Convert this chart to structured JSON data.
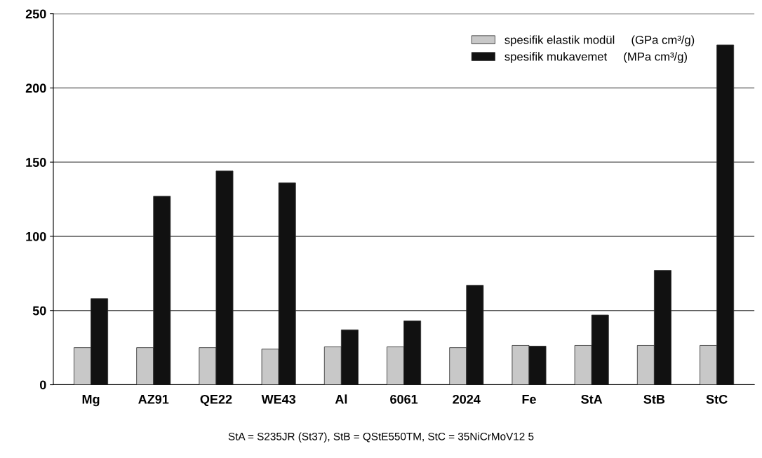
{
  "chart_data": {
    "type": "bar",
    "categories": [
      "Mg",
      "AZ91",
      "QE22",
      "WE43",
      "Al",
      "6061",
      "2024",
      "Fe",
      "StA",
      "StB",
      "StC"
    ],
    "series": [
      {
        "name": "spesifik elastik modül     (GPa cm³/g)",
        "color": "#c8c8c8",
        "values": [
          25,
          25,
          25,
          24,
          25.5,
          25.5,
          25,
          26.5,
          26.5,
          26.5,
          26.5
        ]
      },
      {
        "name": "spesifik mukavemet     (MPa cm³/g)",
        "color": "#111111",
        "values": [
          58,
          127,
          144,
          136,
          37,
          43,
          67,
          26,
          47,
          77,
          229
        ]
      }
    ],
    "ylim": [
      0,
      250
    ],
    "yticks": [
      0,
      50,
      100,
      150,
      200,
      250
    ],
    "grid": "y",
    "legend": "top right",
    "annotations": [
      "StA = S235JR (St37), StB = QStE550TM, StC = 35NiCrMoV12 5"
    ]
  }
}
